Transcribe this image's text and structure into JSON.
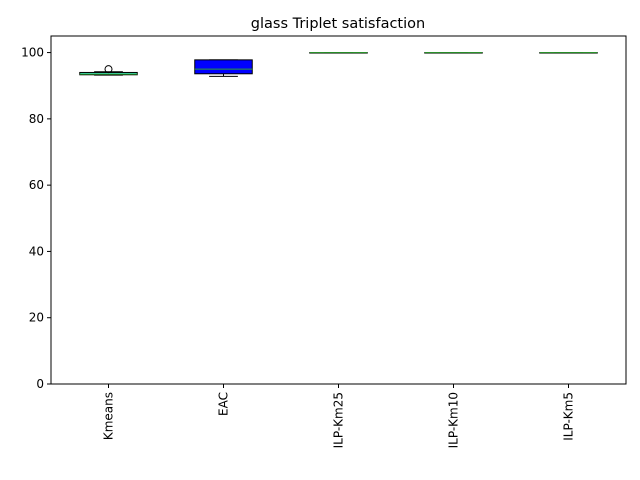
{
  "chart_data": {
    "type": "box",
    "title": "glass Triplet satisfaction",
    "xlabel": "",
    "ylabel": "",
    "ylim": [
      0,
      105
    ],
    "yticks": [
      0,
      20,
      40,
      60,
      80,
      100
    ],
    "categories": [
      "Kmeans",
      "EAC",
      "ILP-Km25",
      "ILP-Km10",
      "ILP-Km5"
    ],
    "boxes": [
      {
        "name": "Kmeans",
        "whislo": 93.2,
        "q1": 93.3,
        "median": 93.5,
        "q3": 94.0,
        "whishi": 94.2,
        "fliers": [
          95.0
        ],
        "facecolor": "#40e0d0",
        "median_color": "#2ca02c"
      },
      {
        "name": "EAC",
        "whislo": 92.8,
        "q1": 93.6,
        "median": 95.0,
        "q3": 97.8,
        "whishi": 97.8,
        "fliers": [],
        "facecolor": "#0000ff",
        "median_color": "#2ca02c"
      },
      {
        "name": "ILP-Km25",
        "whislo": 100,
        "q1": 100,
        "median": 100,
        "q3": 100,
        "whishi": 100,
        "fliers": [],
        "facecolor": "#ffffff",
        "median_color": "#2ca02c"
      },
      {
        "name": "ILP-Km10",
        "whislo": 100,
        "q1": 100,
        "median": 100,
        "q3": 100,
        "whishi": 100,
        "fliers": [],
        "facecolor": "#ffffff",
        "median_color": "#2ca02c"
      },
      {
        "name": "ILP-Km5",
        "whislo": 100,
        "q1": 100,
        "median": 100,
        "q3": 100,
        "whishi": 100,
        "fliers": [],
        "facecolor": "#ffffff",
        "median_color": "#2ca02c"
      }
    ],
    "grid": false,
    "legend": "none"
  }
}
